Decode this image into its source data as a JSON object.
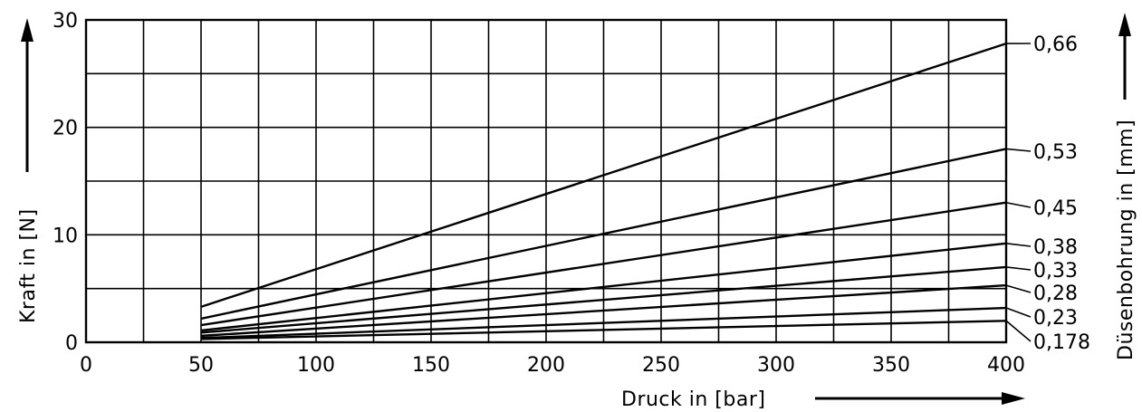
{
  "chart_data": {
    "type": "line",
    "xlabel": "Druck in [bar]",
    "ylabel": "Kraft in [N]",
    "y2label": "Düsenbohrung in [mm]",
    "xlim": [
      0,
      400
    ],
    "ylim": [
      0,
      30
    ],
    "x_ticks": [
      0,
      50,
      100,
      150,
      200,
      250,
      300,
      350,
      400
    ],
    "y_ticks": [
      0,
      10,
      20,
      30
    ],
    "grid": true,
    "grid_x_step": 25,
    "grid_y_step": 5,
    "series": [
      {
        "name": "0,66",
        "x": [
          50,
          400
        ],
        "y": [
          3.3,
          27.8
        ]
      },
      {
        "name": "0,53",
        "x": [
          50,
          400
        ],
        "y": [
          2.2,
          18.0
        ]
      },
      {
        "name": "0,45",
        "x": [
          50,
          400
        ],
        "y": [
          1.6,
          13.0
        ]
      },
      {
        "name": "0,38",
        "x": [
          50,
          400
        ],
        "y": [
          1.1,
          9.2
        ]
      },
      {
        "name": "0,33",
        "x": [
          50,
          400
        ],
        "y": [
          0.9,
          7.0
        ]
      },
      {
        "name": "0,28",
        "x": [
          50,
          400
        ],
        "y": [
          0.6,
          5.3
        ]
      },
      {
        "name": "0,23",
        "x": [
          50,
          400
        ],
        "y": [
          0.4,
          3.2
        ]
      },
      {
        "name": "0,178",
        "x": [
          50,
          400
        ],
        "y": [
          0.3,
          2.0
        ]
      }
    ]
  }
}
